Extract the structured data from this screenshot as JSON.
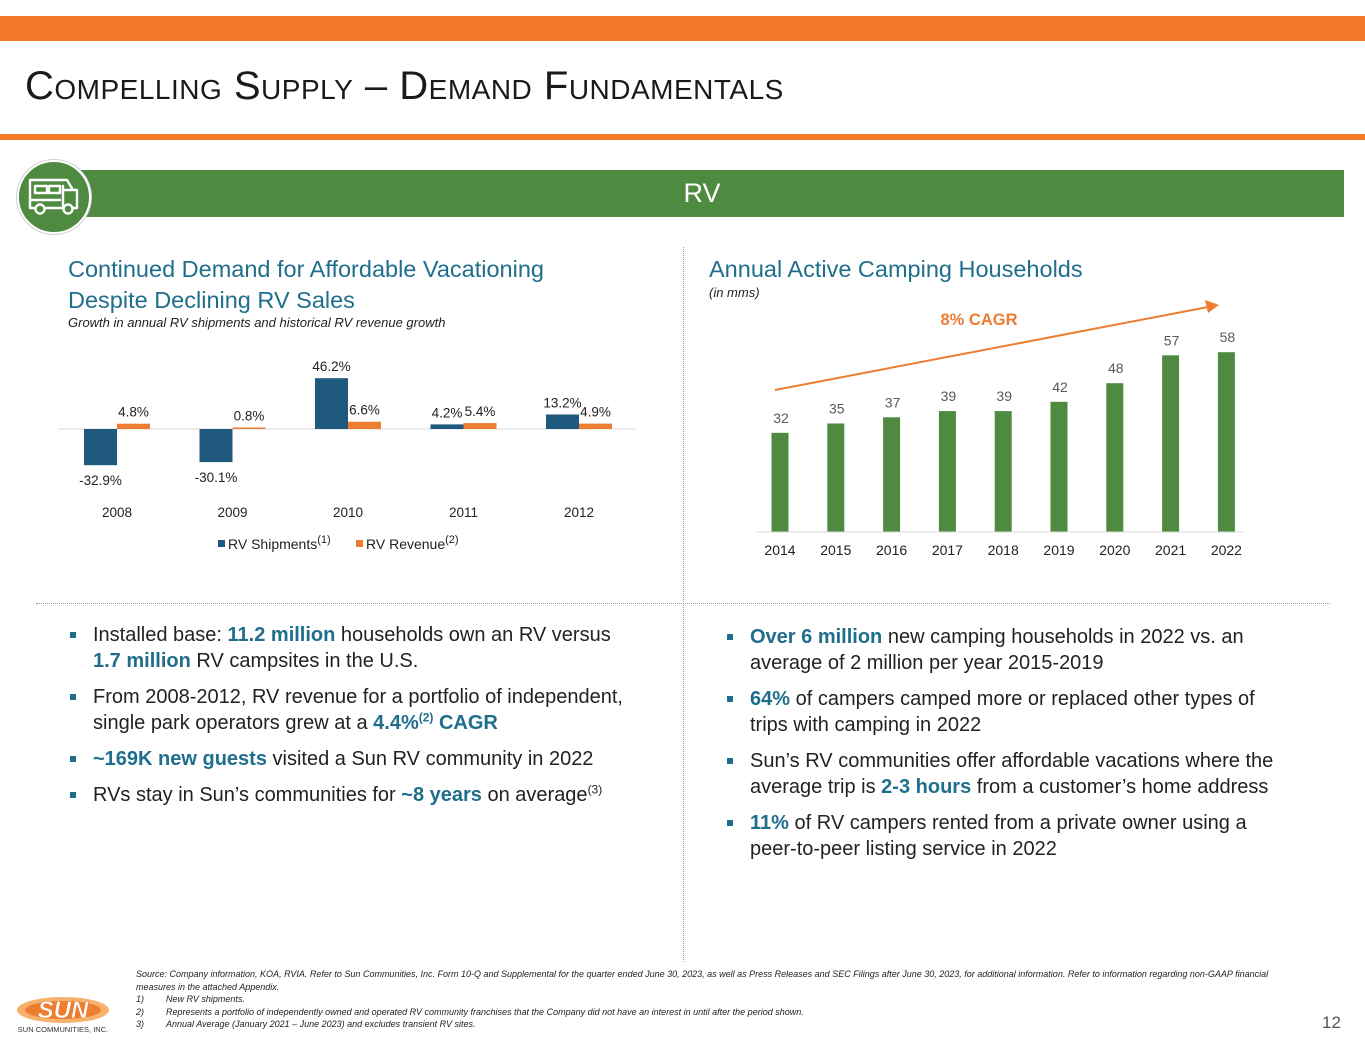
{
  "title": "Compelling Supply – Demand Fundamentals",
  "banner": {
    "label": "RV",
    "icon": "rv-icon"
  },
  "left_chart": {
    "heading_line1": "Continued Demand for Affordable Vacationing",
    "heading_line2": "Despite Declining RV Sales",
    "subtitle": "Growth in annual RV shipments and historical RV revenue growth"
  },
  "right_chart": {
    "heading": "Annual Active Camping Households",
    "subtitle": "(in mms)",
    "cagr_label": "8% CAGR"
  },
  "chart_data": [
    {
      "type": "bar",
      "categories": [
        "2008",
        "2009",
        "2010",
        "2011",
        "2012"
      ],
      "series": [
        {
          "name": "RV Shipments",
          "superscript": "(1)",
          "color": "#1F5A7E",
          "values": [
            -32.9,
            -30.1,
            46.2,
            4.2,
            13.2
          ],
          "labels": [
            "-32.9%",
            "-30.1%",
            "46.2%",
            "4.2%",
            "13.2%"
          ]
        },
        {
          "name": "RV Revenue",
          "superscript": "(2)",
          "color": "#ED7D31",
          "values": [
            4.8,
            0.8,
            6.6,
            5.4,
            4.9
          ],
          "labels": [
            "4.8%",
            "0.8%",
            "6.6%",
            "5.4%",
            "4.9%"
          ]
        }
      ],
      "legend": "bottom",
      "grid": false
    },
    {
      "type": "bar",
      "categories": [
        "2014",
        "2015",
        "2016",
        "2017",
        "2018",
        "2019",
        "2020",
        "2021",
        "2022"
      ],
      "series": [
        {
          "color": "#4E8A3F",
          "values": [
            32,
            35,
            37,
            39,
            39,
            42,
            48,
            57,
            58
          ]
        }
      ],
      "annotation": "8% CAGR",
      "annotation_color": "#ED7D31",
      "grid": false
    }
  ],
  "left_bullets": [
    {
      "parts": [
        {
          "t": "Installed base: "
        },
        {
          "t": "11.2 million",
          "hl": true
        },
        {
          "t": " households own an RV versus "
        },
        {
          "t": "1.7 million",
          "hl": true
        },
        {
          "t": " RV campsites in the U.S."
        }
      ]
    },
    {
      "parts": [
        {
          "t": "From 2008-2012, RV revenue for a portfolio of independent, single park operators grew at a "
        },
        {
          "t": "4.4%",
          "hl": true
        },
        {
          "t": "(2)",
          "sup": true,
          "hl": true
        },
        {
          "t": " CAGR",
          "hl": true
        }
      ]
    },
    {
      "parts": [
        {
          "t": "~169K new guests",
          "hl": true
        },
        {
          "t": " visited a Sun RV community in 2022"
        }
      ]
    },
    {
      "parts": [
        {
          "t": "RVs stay in Sun’s communities for "
        },
        {
          "t": "~8 years",
          "hl": true
        },
        {
          "t": " on average"
        },
        {
          "t": "(3)",
          "sup": true
        }
      ]
    }
  ],
  "right_bullets": [
    {
      "parts": [
        {
          "t": "Over 6 million",
          "hl": true
        },
        {
          "t": " new camping households in 2022 vs. an average of 2 million per year 2015-2019"
        }
      ]
    },
    {
      "parts": [
        {
          "t": "64%",
          "hl": true
        },
        {
          "t": " of campers camped more or replaced other types of trips with camping in 2022"
        }
      ]
    },
    {
      "parts": [
        {
          "t": "Sun’s RV communities offer affordable vacations where the average trip is "
        },
        {
          "t": "2-3 hours",
          "hl": true
        },
        {
          "t": " from a customer’s home address"
        }
      ]
    },
    {
      "parts": [
        {
          "t": "11%",
          "hl": true
        },
        {
          "t": " of RV campers rented from a private owner using a peer-to-peer listing service in 2022"
        }
      ]
    }
  ],
  "footnotes": {
    "source": "Source: Company information, KOA, RVIA. Refer to Sun Communities, Inc. Form 10-Q and Supplemental for the quarter ended June 30, 2023, as well as Press Releases and SEC Filings after June 30, 2023, for additional information. Refer to information regarding non-GAAP financial measures in the attached Appendix.",
    "notes": [
      {
        "num": "1)",
        "text": "New RV shipments."
      },
      {
        "num": "2)",
        "text": "Represents a portfolio of independently owned and operated RV community franchises that the Company did not have an interest in until after the period shown."
      },
      {
        "num": "3)",
        "text": "Annual Average (January 2021 – June 2023) and excludes transient RV sites."
      }
    ]
  },
  "logo": {
    "text": "SUN",
    "subtext": "SUN COMMUNITIES, INC.",
    "color": "#ED7D31"
  },
  "page_number": "12"
}
